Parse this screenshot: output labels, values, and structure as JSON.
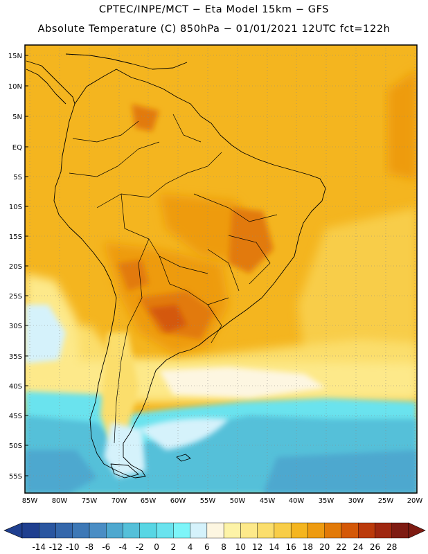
{
  "header": {
    "line1": "CPTEC/INPE/MCT −  Eta Model 15km − GFS",
    "line2": "Absolute Temperature (C) 850hPa − 01/01/2021 12UTC fct=122h"
  },
  "map": {
    "lat_labels": [
      "15N",
      "10N",
      "5N",
      "EQ",
      "5S",
      "10S",
      "15S",
      "20S",
      "25S",
      "30S",
      "35S",
      "40S",
      "45S",
      "50S",
      "55S"
    ],
    "lon_labels": [
      "85W",
      "80W",
      "75W",
      "70W",
      "65W",
      "60W",
      "55W",
      "50W",
      "45W",
      "40W",
      "35W",
      "30W",
      "25W",
      "20W"
    ],
    "grid": true,
    "region": "South America"
  },
  "colorbar": {
    "levels": [
      "-14",
      "-12",
      "-10",
      "-8",
      "-6",
      "-4",
      "-2",
      "0",
      "2",
      "4",
      "6",
      "8",
      "10",
      "12",
      "14",
      "16",
      "18",
      "20",
      "22",
      "24",
      "26",
      "28"
    ],
    "colors": [
      "#1f3f8f",
      "#2a56a0",
      "#3467ab",
      "#3d78b6",
      "#4a8dc4",
      "#4ea8cf",
      "#55c0d9",
      "#58d6e4",
      "#6ae3ee",
      "#7df5f9",
      "#d5f2fb",
      "#fdf6e1",
      "#fdf3a7",
      "#fde98a",
      "#fbde6c",
      "#f8cd48",
      "#f4b51f",
      "#ee9b10",
      "#e27a08",
      "#d45807",
      "#bb3a0b",
      "#9f2710",
      "#7e1b12"
    ]
  }
}
